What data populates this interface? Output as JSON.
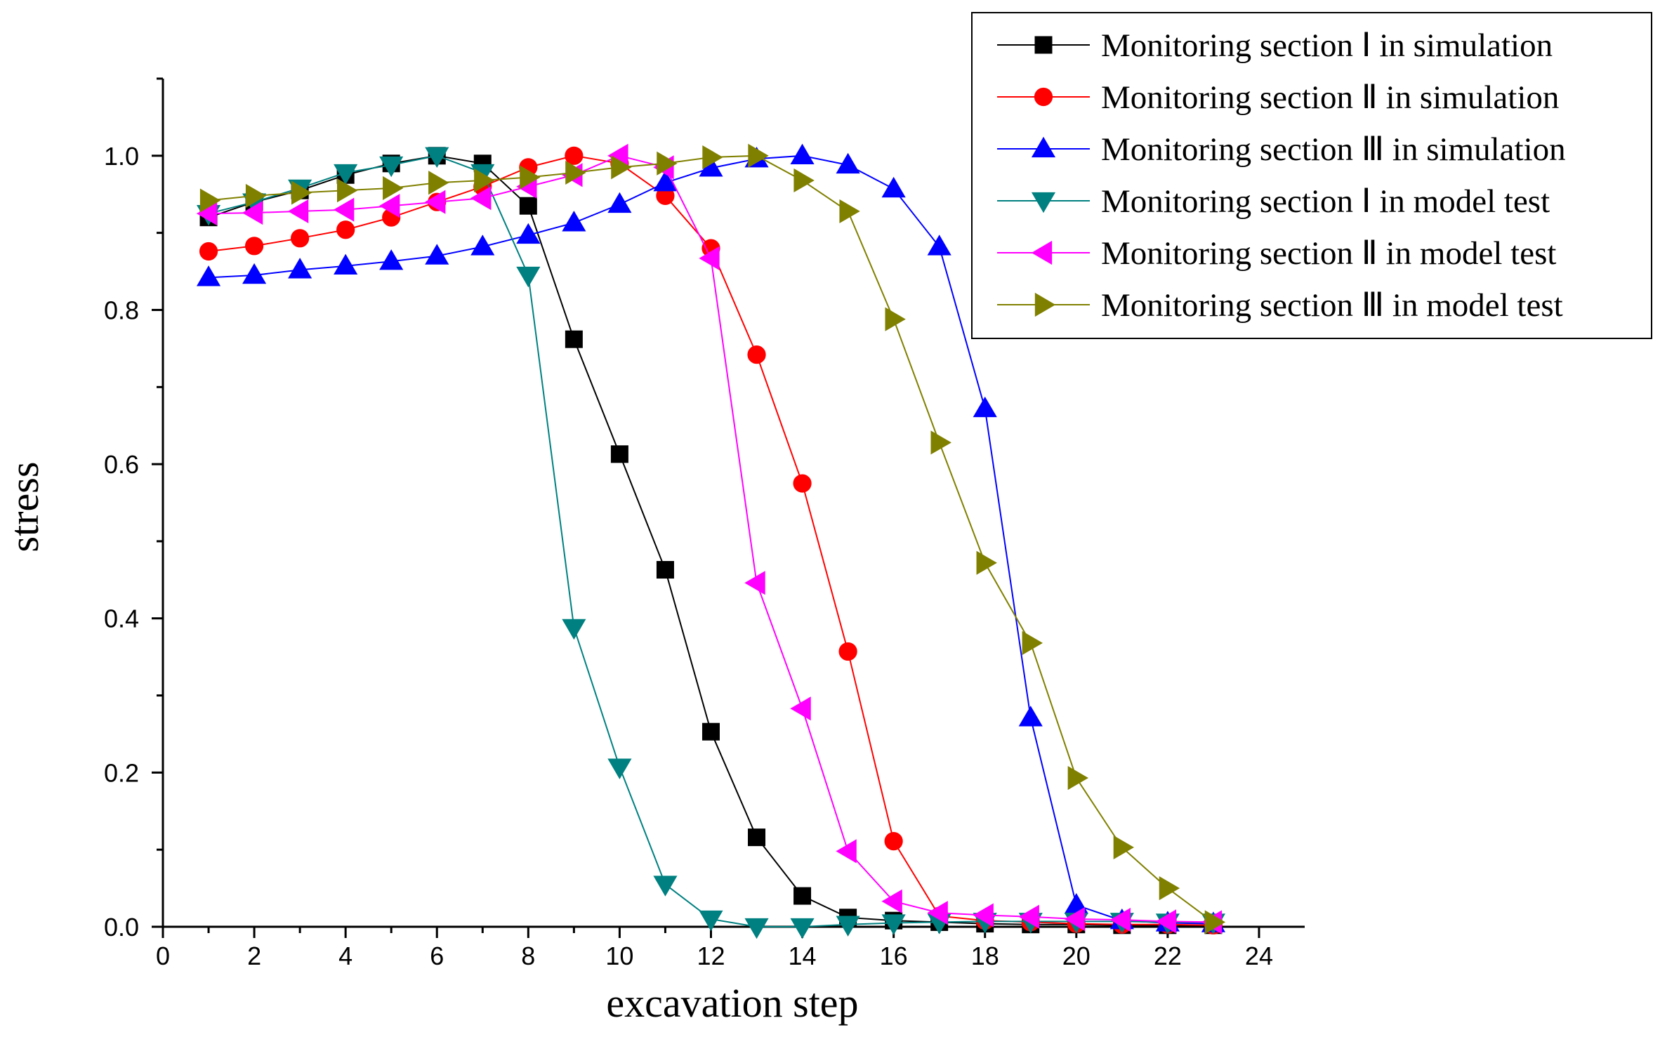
{
  "chart_data": {
    "type": "line",
    "xlabel": "excavation step",
    "ylabel": "stress",
    "xlim": [
      0,
      25
    ],
    "ylim": [
      0,
      1.1
    ],
    "xticks": [
      0,
      2,
      4,
      6,
      8,
      10,
      12,
      14,
      16,
      18,
      20,
      22,
      24
    ],
    "yticks": [
      0.0,
      0.2,
      0.4,
      0.6,
      0.8,
      1.0
    ],
    "ytick_labels": [
      "0.0",
      "0.2",
      "0.4",
      "0.6",
      "0.8",
      "1.0"
    ],
    "legend_position": "top-right",
    "grid": false,
    "x": [
      1,
      2,
      3,
      4,
      5,
      6,
      7,
      8,
      9,
      10,
      11,
      12,
      13,
      14,
      15,
      16,
      17,
      18,
      19,
      20,
      21,
      22,
      23
    ],
    "series": [
      {
        "name": "Monitoring section Ⅰ in simulation",
        "color": "#000000",
        "marker": "square",
        "values": [
          0.92,
          0.94,
          0.955,
          0.975,
          0.99,
          1.0,
          0.99,
          0.935,
          0.762,
          0.613,
          0.463,
          0.253,
          0.116,
          0.04,
          0.012,
          0.008,
          0.006,
          0.004,
          0.003,
          0.003,
          0.002,
          0.002,
          0.002
        ]
      },
      {
        "name": "Monitoring section Ⅱ in simulation",
        "color": "#ff0000",
        "marker": "circle",
        "values": [
          0.876,
          0.883,
          0.893,
          0.904,
          0.92,
          0.94,
          0.96,
          0.985,
          1.0,
          0.99,
          0.948,
          0.88,
          0.742,
          0.575,
          0.357,
          0.111,
          0.014,
          0.008,
          0.006,
          0.004,
          0.003,
          0.003,
          0.002
        ]
      },
      {
        "name": "Monitoring section Ⅲ in simulation",
        "color": "#0000ff",
        "marker": "triangle-up",
        "values": [
          0.842,
          0.845,
          0.852,
          0.857,
          0.863,
          0.87,
          0.882,
          0.897,
          0.913,
          0.937,
          0.965,
          0.984,
          0.996,
          1.0,
          0.988,
          0.957,
          0.882,
          0.672,
          0.271,
          0.028,
          0.008,
          0.005,
          0.004
        ]
      },
      {
        "name": "Monitoring section Ⅰ in model test",
        "color": "#008080",
        "marker": "triangle-down",
        "values": [
          0.925,
          0.94,
          0.958,
          0.978,
          0.988,
          1.0,
          0.978,
          0.845,
          0.388,
          0.207,
          0.055,
          0.01,
          0.0,
          0.0,
          0.003,
          0.005,
          0.006,
          0.007,
          0.007,
          0.007,
          0.007,
          0.006,
          0.006
        ]
      },
      {
        "name": "Monitoring section Ⅱ in model test",
        "color": "#ff00ff",
        "marker": "triangle-left",
        "values": [
          0.925,
          0.926,
          0.928,
          0.93,
          0.935,
          0.94,
          0.945,
          0.96,
          0.975,
          1.0,
          0.985,
          0.867,
          0.446,
          0.283,
          0.098,
          0.033,
          0.018,
          0.015,
          0.013,
          0.01,
          0.009,
          0.007,
          0.006
        ]
      },
      {
        "name": "Monitoring section Ⅲ in model test",
        "color": "#808000",
        "marker": "triangle-right",
        "values": [
          0.942,
          0.948,
          0.952,
          0.955,
          0.958,
          0.965,
          0.968,
          0.972,
          0.978,
          0.985,
          0.99,
          0.998,
          1.0,
          0.968,
          0.928,
          0.788,
          0.628,
          0.472,
          0.368,
          0.193,
          0.103,
          0.05,
          0.006
        ]
      }
    ]
  }
}
